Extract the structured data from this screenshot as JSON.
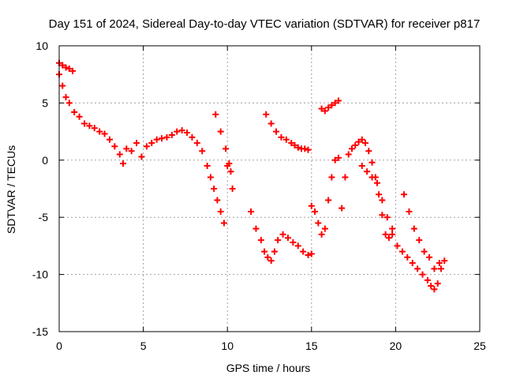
{
  "chart_data": {
    "type": "scatter",
    "title": "Day 151 of 2024, Sidereal Day-to-day VTEC variation (SDTVAR) for receiver p817",
    "xlabel": "GPS time / hours",
    "ylabel": "SDTVAR / TECUs",
    "xlim": [
      0,
      25
    ],
    "ylim": [
      -15,
      10
    ],
    "xticks": [
      0,
      5,
      10,
      15,
      20,
      25
    ],
    "yticks": [
      -15,
      -10,
      -5,
      0,
      5,
      10
    ],
    "xtick_labels": [
      "0",
      "5",
      "10",
      "15",
      "20",
      "25"
    ],
    "ytick_labels": [
      "-15",
      "-10",
      "-5",
      "0",
      "5",
      "10"
    ],
    "grid": true,
    "marker": "plus",
    "series": [
      {
        "name": "SDTVAR",
        "color": "#ff0000",
        "x": [
          0.0,
          0.2,
          0.4,
          0.6,
          0.8,
          0.0,
          0.2,
          0.4,
          0.6,
          0.9,
          1.2,
          1.5,
          1.8,
          2.1,
          2.4,
          2.7,
          3.0,
          3.3,
          3.6,
          3.8,
          4.0,
          4.3,
          4.6,
          4.9,
          5.2,
          5.5,
          5.8,
          6.1,
          6.4,
          6.7,
          7.0,
          7.3,
          7.6,
          7.9,
          8.2,
          8.5,
          8.8,
          9.0,
          9.2,
          9.4,
          9.6,
          9.8,
          10.0,
          10.2,
          9.3,
          9.6,
          9.9,
          10.1,
          10.3,
          11.4,
          11.7,
          12.0,
          12.2,
          12.4,
          12.6,
          12.8,
          13.0,
          13.3,
          13.6,
          13.9,
          14.2,
          14.5,
          14.8,
          15.0,
          12.3,
          12.6,
          12.9,
          13.2,
          13.5,
          13.8,
          14.0,
          14.2,
          14.4,
          14.6,
          14.8,
          15.0,
          15.2,
          15.4,
          15.6,
          15.8,
          16.0,
          16.2,
          16.4,
          16.6,
          15.6,
          15.8,
          16.0,
          16.2,
          16.4,
          16.6,
          16.8,
          17.0,
          17.2,
          17.4,
          17.6,
          17.8,
          18.0,
          18.2,
          18.4,
          18.6,
          18.8,
          19.0,
          19.2,
          19.4,
          19.6,
          19.8,
          18.0,
          18.3,
          18.6,
          18.9,
          19.2,
          19.5,
          19.8,
          20.1,
          20.4,
          20.7,
          21.0,
          21.3,
          21.6,
          21.9,
          22.1,
          22.3,
          22.5,
          22.7,
          22.9,
          20.5,
          20.8,
          21.1,
          21.4,
          21.7,
          22.0,
          22.3,
          22.6
        ],
        "y": [
          8.5,
          8.3,
          8.1,
          8.0,
          7.8,
          7.5,
          6.5,
          5.5,
          5.0,
          4.2,
          3.8,
          3.2,
          3.0,
          2.8,
          2.5,
          2.3,
          1.8,
          1.2,
          0.5,
          -0.3,
          1.0,
          0.8,
          1.5,
          0.3,
          1.2,
          1.5,
          1.8,
          1.9,
          2.0,
          2.2,
          2.5,
          2.6,
          2.4,
          2.0,
          1.5,
          0.8,
          -0.5,
          -1.5,
          -2.5,
          -3.5,
          -4.5,
          -5.5,
          -0.5,
          -1.0,
          4.0,
          2.5,
          1.0,
          -0.3,
          -2.5,
          -4.5,
          -6.0,
          -7.0,
          -8.0,
          -8.5,
          -8.8,
          -8.0,
          -7.0,
          -6.5,
          -6.8,
          -7.2,
          -7.5,
          -8.0,
          -8.3,
          -8.2,
          4.0,
          3.2,
          2.5,
          2.0,
          1.8,
          1.5,
          1.3,
          1.1,
          1.0,
          1.0,
          0.9,
          -4.0,
          -4.5,
          -5.5,
          -6.5,
          -6.0,
          -3.5,
          -1.5,
          0.0,
          0.2,
          4.5,
          4.3,
          4.6,
          4.8,
          5.0,
          5.2,
          -4.2,
          -1.5,
          0.5,
          1.0,
          1.3,
          1.6,
          1.8,
          1.5,
          0.8,
          -0.2,
          -1.5,
          -3.0,
          -4.8,
          -6.5,
          -6.8,
          -6.0,
          -0.5,
          -1.0,
          -1.5,
          -2.0,
          -3.5,
          -5.0,
          -6.5,
          -7.5,
          -8.0,
          -8.5,
          -9.0,
          -9.5,
          -10.0,
          -10.5,
          -11.0,
          -11.3,
          -10.8,
          -9.5,
          -8.8,
          -3.0,
          -4.5,
          -6.0,
          -7.0,
          -8.0,
          -8.5,
          -9.5,
          -9.0
        ]
      }
    ]
  }
}
